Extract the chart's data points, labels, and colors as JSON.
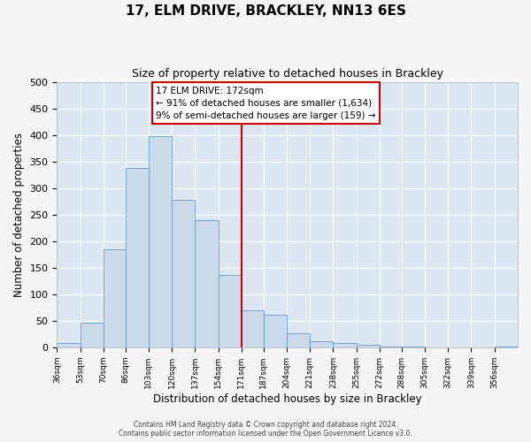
{
  "title": "17, ELM DRIVE, BRACKLEY, NN13 6ES",
  "subtitle": "Size of property relative to detached houses in Brackley",
  "xlabel": "Distribution of detached houses by size in Brackley",
  "ylabel": "Number of detached properties",
  "bar_color": "#ccd9ea",
  "bar_edge_color": "#6b9ec8",
  "background_color": "#dce6f0",
  "fig_background_color": "#f5f5f5",
  "grid_color": "#ffffff",
  "vline_x": 171,
  "vline_color": "#cc0000",
  "bin_edges": [
    36,
    53,
    70,
    86,
    103,
    120,
    137,
    154,
    171,
    187,
    204,
    221,
    238,
    255,
    272,
    288,
    305,
    322,
    339,
    356,
    373
  ],
  "bin_heights": [
    8,
    46,
    185,
    338,
    398,
    278,
    240,
    137,
    70,
    62,
    27,
    12,
    8,
    4,
    2,
    1,
    0,
    0,
    0,
    2
  ],
  "ylim": [
    0,
    500
  ],
  "yticks": [
    0,
    50,
    100,
    150,
    200,
    250,
    300,
    350,
    400,
    450,
    500
  ],
  "annotation_title": "17 ELM DRIVE: 172sqm",
  "annotation_line1": "← 91% of detached houses are smaller (1,634)",
  "annotation_line2": "9% of semi-detached houses are larger (159) →",
  "annotation_box_color": "#ffffff",
  "annotation_box_edge": "#cc0000",
  "footer1": "Contains HM Land Registry data © Crown copyright and database right 2024.",
  "footer2": "Contains public sector information licensed under the Open Government Licence v3.0."
}
